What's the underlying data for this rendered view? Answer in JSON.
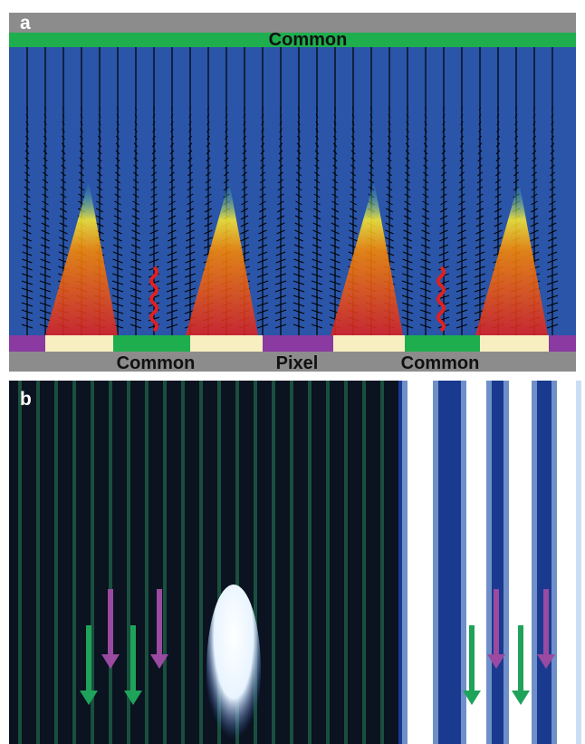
{
  "panels": [
    {
      "label": "a",
      "top_electrode": "Common",
      "bottom_labels": [
        "Common",
        "Pixel",
        "Common"
      ]
    },
    {
      "label": "b"
    }
  ]
}
